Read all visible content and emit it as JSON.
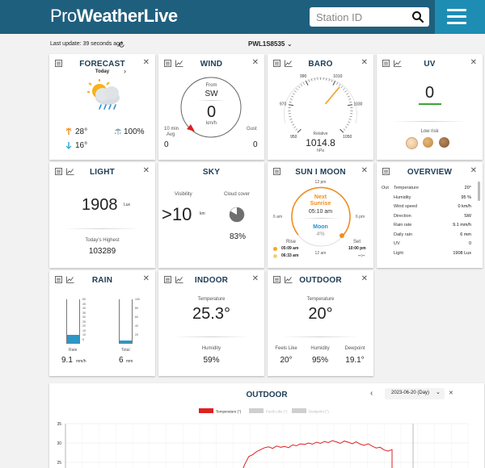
{
  "header": {
    "logo_pro": "Pro",
    "logo_bold": "WeatherLive",
    "search_placeholder": "Station ID"
  },
  "status": {
    "last_update": "Last update: 39 seconds ago",
    "station": "PWL1S8535"
  },
  "forecast": {
    "title": "FORECAST",
    "day": "Today",
    "high": "28°",
    "low": "16°",
    "rain_chance": "100%"
  },
  "wind": {
    "title": "WIND",
    "from_label": "From",
    "direction": "SW",
    "speed": "0",
    "unit": "km/h",
    "avg_label_1": "10 min",
    "avg_label_2": "Avg",
    "avg_value": "0",
    "gust_label": "Gust",
    "gust_value": "0"
  },
  "baro": {
    "title": "BARO",
    "ticks": [
      "950",
      "970",
      "990",
      "1010",
      "1030",
      "1050"
    ],
    "relative_label": "Relative",
    "value": "1014.8",
    "unit": "hPa",
    "gauge_min": 950,
    "gauge_max": 1050,
    "needle_value": 1014.8
  },
  "uv": {
    "title": "UV",
    "value": "0",
    "risk": "Low risk",
    "accent": "#3aa435"
  },
  "light": {
    "title": "LIGHT",
    "value": "1908",
    "unit": "Lux",
    "highest_label": "Today's Highest",
    "highest_value": "103289"
  },
  "sky": {
    "title": "SKY",
    "visibility_label": "Visibility",
    "visibility_value": ">10",
    "visibility_unit": "km",
    "cloud_label": "Cloud cover",
    "cloud_value": "83%",
    "cloud_fraction": 0.83
  },
  "sunmoon": {
    "title": "SUN I MOON",
    "label_12pm": "12 pm",
    "label_6am": "6 am",
    "label_6pm": "6 pm",
    "label_12am": "12 am",
    "next_label_1": "Next",
    "next_label_2": "Sunrise",
    "next_time": "05:10 am",
    "moon_label": "Moon",
    "moon_value": "4%",
    "rise_label": "Rise",
    "set_label": "Set",
    "sun_rise": "05:09 am",
    "sun_set": "10:00 pm",
    "moon_rise": "06:33 am",
    "moon_set": "--:--"
  },
  "overview": {
    "title": "OVERVIEW",
    "out_label": "Out",
    "rows": [
      {
        "label": "Temperature",
        "value": "20°"
      },
      {
        "label": "Humidity",
        "value": "95 %"
      },
      {
        "label": "Wind speed",
        "value": "0 km/h"
      },
      {
        "label": "Direction",
        "value": "SW"
      },
      {
        "label": "Rain rate",
        "value": "9.1 mm/h"
      },
      {
        "label": "Daily rain",
        "value": "6 mm"
      },
      {
        "label": "UV",
        "value": "0"
      },
      {
        "label": "Light",
        "value": "1908 Lux"
      }
    ]
  },
  "rain": {
    "title": "RAIN",
    "rate_label": "Rate",
    "rate_value": "9.1",
    "rate_unit": "mm/h",
    "total_label": "Total",
    "total_value": "6",
    "total_unit": "mm",
    "rate_ticks": [
      "50",
      "45",
      "40",
      "35",
      "30",
      "25",
      "20",
      "15",
      "10",
      "5"
    ],
    "total_ticks": [
      "100",
      "80",
      "60",
      "40",
      "20"
    ],
    "rate_max": 50,
    "total_max": 100
  },
  "indoor": {
    "title": "INDOOR",
    "temp_label": "Temperature",
    "temp_value": "25.3°",
    "hum_label": "Humidity",
    "hum_value": "59%"
  },
  "outdoor": {
    "title": "OUTDOOR",
    "temp_label": "Temperature",
    "temp_value": "20°",
    "feels_label": "Feels Like",
    "feels_value": "20°",
    "hum_label": "Humidity",
    "hum_value": "95%",
    "dew_label": "Dewpoint",
    "dew_value": "19.1°"
  },
  "chart_panel": {
    "title": "OUTDOOR",
    "date": "2023-06-20 (Day)"
  },
  "chart_data": {
    "type": "line",
    "title": "OUTDOOR",
    "legend": [
      "Temperature (°)",
      "Feels Like (°)",
      "Dewpoint (°)"
    ],
    "legend_placement": "top-center",
    "yticks": [
      "35",
      "30",
      "25"
    ],
    "ylim": [
      22,
      35
    ],
    "grid": true,
    "series": [
      {
        "name": "Temperature (°)",
        "color": "#e02020",
        "values": [
          22,
          22,
          22,
          24.5,
          26.5,
          27,
          27.8,
          28.3,
          28.8,
          29.0,
          28.6,
          29.2,
          28.9,
          29.1,
          28.8,
          29.5,
          29.3,
          29.8,
          29.6,
          30.0,
          29.7,
          30.2,
          29.9,
          30.4,
          30.1,
          30.6,
          30.3,
          29.9,
          30.5,
          30.2,
          29.8,
          30.3,
          29.7,
          29.4,
          29.8,
          29.2,
          28.7,
          28.9,
          28.2,
          27.9,
          28.3,
          22
        ]
      }
    ]
  }
}
